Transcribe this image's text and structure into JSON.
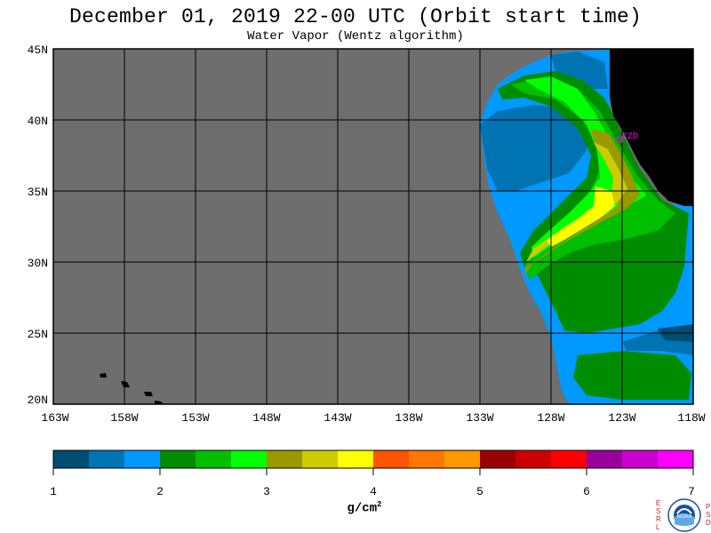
{
  "header": {
    "title": "December 01, 2019  22-00 UTC  (Orbit start time)",
    "subtitle": "Water Vapor (Wentz algorithm)"
  },
  "map": {
    "lat_labels": [
      "45N",
      "40N",
      "35N",
      "30N",
      "25N",
      "20N"
    ],
    "lon_labels": [
      "163W",
      "158W",
      "153W",
      "148W",
      "143W",
      "138W",
      "133W",
      "128W",
      "123W",
      "118W"
    ],
    "lat_range": [
      20,
      45
    ],
    "lon_range": [
      -163,
      -118
    ],
    "grid": true,
    "no_data_color": "#6e6e6e",
    "land_color": "#000000",
    "station_label": "CZD",
    "station_color": "#ff00ff"
  },
  "colorbar": {
    "units": "g/cm",
    "units_superscript": "2",
    "tick_labels": [
      "1",
      "2",
      "3",
      "4",
      "5",
      "6",
      "7"
    ],
    "range": [
      1,
      7
    ],
    "colors": [
      "#004d73",
      "#0073b3",
      "#0099ff",
      "#008c00",
      "#00bf00",
      "#00ff00",
      "#999900",
      "#cccc00",
      "#ffff00",
      "#ff5500",
      "#ff7700",
      "#ff9900",
      "#990000",
      "#cc0000",
      "#ff0000",
      "#990099",
      "#cc00cc",
      "#ff00ff"
    ]
  },
  "logo": {
    "left_letters": [
      "E",
      "S",
      "R",
      "L"
    ],
    "right_letters": [
      "P",
      "S",
      "D"
    ],
    "center_text": "NOAA"
  }
}
